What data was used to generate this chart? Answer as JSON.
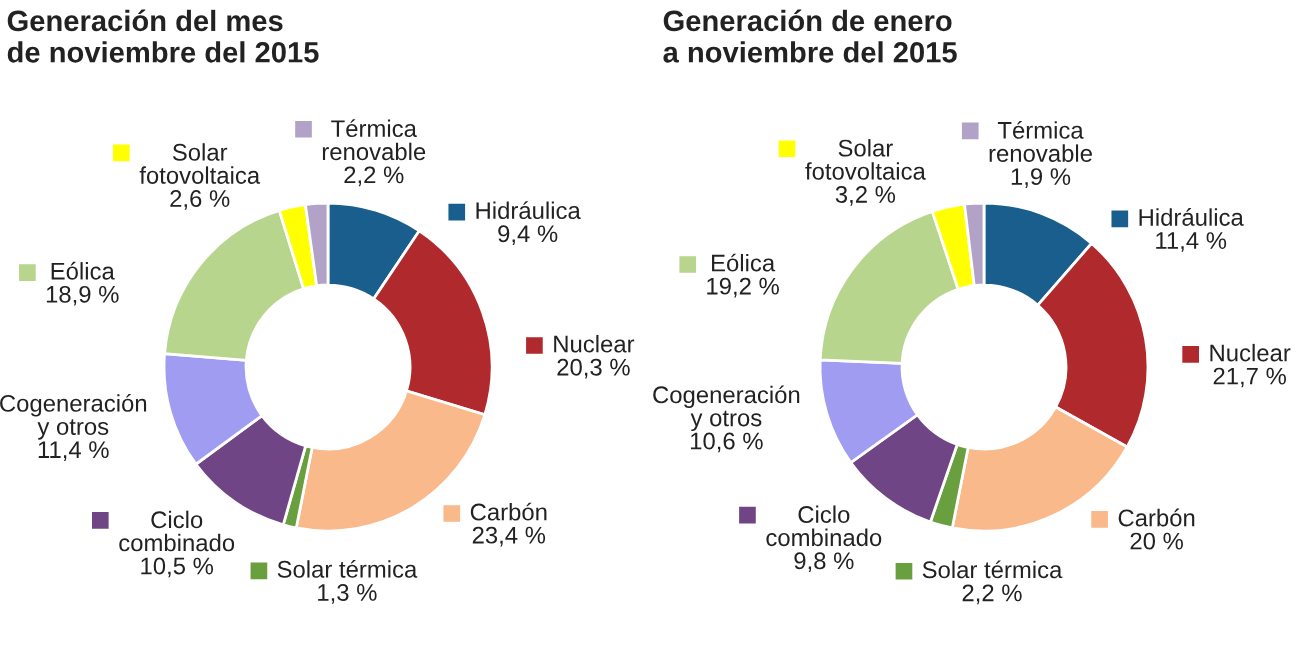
{
  "chart_data": [
    {
      "type": "donut",
      "legend": "top left",
      "title": "Generación del mes\nde noviembre del 2015",
      "categories": [
        "Hidráulica",
        "Nuclear",
        "Carbón",
        "Solar térmica",
        "Ciclo\ncombinado",
        "Cogeneración\ny otros",
        "Eólica",
        "Solar\nfotovoltaica",
        "Térmica\nrenovable"
      ],
      "values": [
        9.4,
        20.3,
        23.4,
        1.3,
        10.5,
        11.4,
        18.9,
        2.6,
        2.2
      ],
      "value_labels": [
        "9,4 %",
        "20,3 %",
        "23,4 %",
        "1,3 %",
        "10,5 %",
        "11,4 %",
        "18,9 %",
        "2,6 %",
        "2,2 %"
      ],
      "colors": [
        "#1a5e8e",
        "#b0292d",
        "#f9b98b",
        "#6a9f3f",
        "#6f4585",
        "#a09cf2",
        "#b8d58e",
        "#ffff00",
        "#b3a2c8"
      ]
    },
    {
      "type": "donut",
      "legend": "top right",
      "title": "Generación de enero\na noviembre del 2015",
      "categories": [
        "Hidráulica",
        "Nuclear",
        "Carbón",
        "Solar térmica",
        "Ciclo\ncombinado",
        "Cogeneración\ny otros",
        "Eólica",
        "Solar\nfotovoltaica",
        "Térmica\nrenovable"
      ],
      "values": [
        11.4,
        21.7,
        20,
        2.2,
        9.8,
        10.6,
        19.2,
        3.2,
        1.9
      ],
      "value_labels": [
        "11,4 %",
        "21,7 %",
        "20 %",
        "2,2 %",
        "9,8 %",
        "10,6 %",
        "19,2 %",
        "3,2 %",
        "1,9 %"
      ],
      "colors": [
        "#1a5e8e",
        "#b0292d",
        "#f9b98b",
        "#6a9f3f",
        "#6f4585",
        "#a09cf2",
        "#b8d58e",
        "#ffff00",
        "#b3a2c8"
      ]
    }
  ]
}
